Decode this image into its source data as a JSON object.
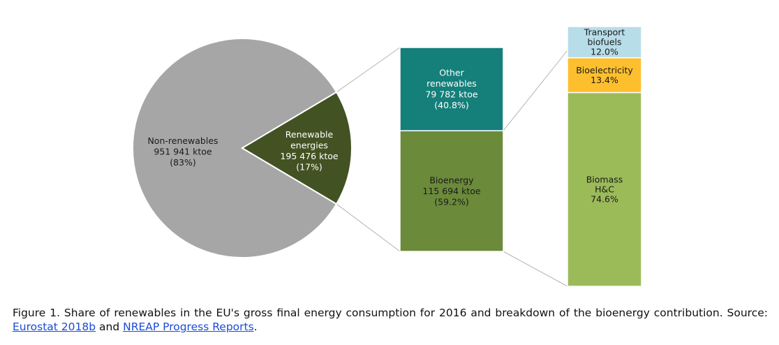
{
  "chart_data": [
    {
      "type": "pie",
      "slices": [
        {
          "label": "Non-renewables",
          "value": 951941,
          "value_text": "951 941 ktoe",
          "pct_text": "(83%)",
          "color": "#a6a6a6"
        },
        {
          "label": "Renewable\nenergies",
          "value": 195476,
          "value_text": "195 476 ktoe",
          "pct_text": "(17%)",
          "color": "#435223"
        }
      ]
    },
    {
      "type": "bar",
      "stacked": true,
      "segments": [
        {
          "label": "Bioenergy",
          "value": 115694,
          "value_text": "115 694 ktoe",
          "pct_text": "(59.2%)",
          "color": "#6b8a3a"
        },
        {
          "label": "Other\nrenewables",
          "value": 79782,
          "value_text": "79 782 ktoe",
          "pct_text": "(40.8%)",
          "color": "#157f7a"
        }
      ]
    },
    {
      "type": "bar",
      "stacked": true,
      "segments": [
        {
          "label": "Biomass\nH&C",
          "value": 74.6,
          "pct_text": "74.6%",
          "color": "#9bbb59"
        },
        {
          "label": "Bioelectricity",
          "value": 13.4,
          "pct_text": "13.4%",
          "color": "#fdbf2d"
        },
        {
          "label": "Transport\nbiofuels",
          "value": 12.0,
          "pct_text": "12.0%",
          "color": "#b7dde8"
        }
      ]
    }
  ],
  "caption": {
    "text_before": "Figure 1. Share of renewables in the EU's gross final energy consumption for 2016 and breakdown of the bioenergy contribution. Source: ",
    "link1": "Eurostat 2018b",
    "text_middle": " and ",
    "link2": "NREAP Progress Reports",
    "text_after": "."
  }
}
